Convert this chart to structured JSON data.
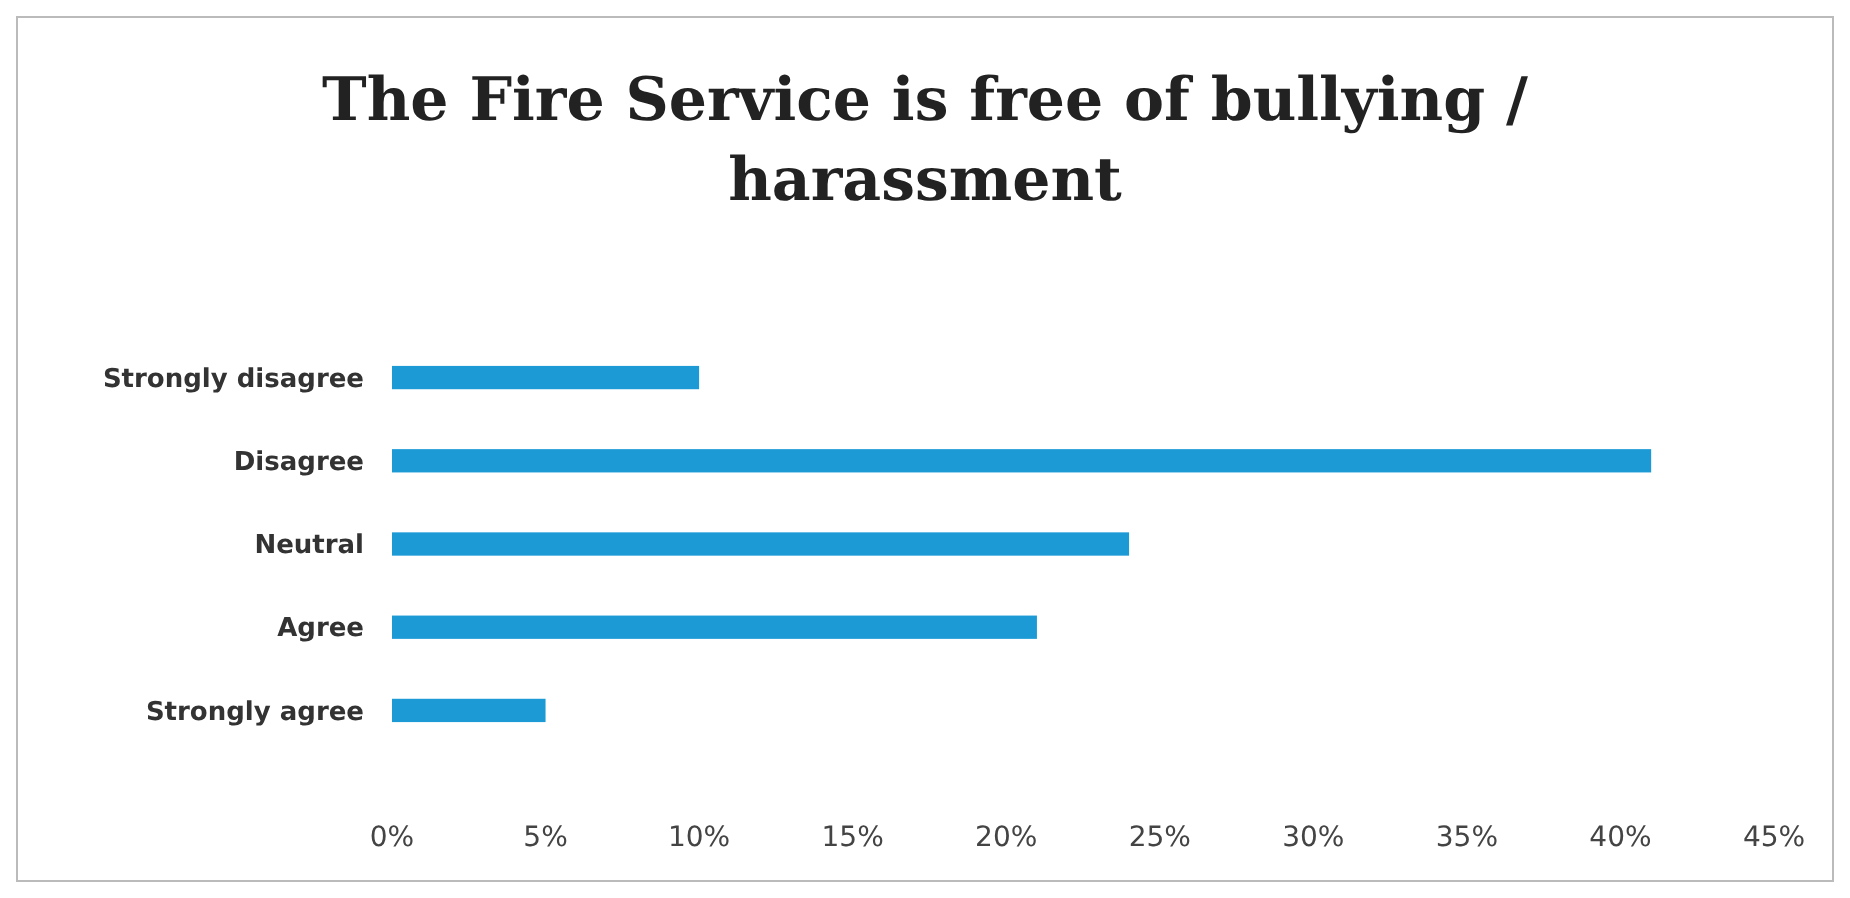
{
  "chart_data": {
    "type": "bar",
    "orientation": "horizontal",
    "title": "The Fire Service is free of bullying / harassment",
    "categories": [
      "Strongly disagree",
      "Disagree",
      "Neutral",
      "Agree",
      "Strongly agree"
    ],
    "values": [
      10,
      41,
      24,
      21,
      5
    ],
    "color": "#1b9ad6",
    "xlim": [
      0,
      45
    ],
    "xticks": [
      {
        "value": 0,
        "label": "0%"
      },
      {
        "value": 5,
        "label": "5%"
      },
      {
        "value": 10,
        "label": "10%"
      },
      {
        "value": 15,
        "label": "15%"
      },
      {
        "value": 20,
        "label": "20%"
      },
      {
        "value": 25,
        "label": "25%"
      },
      {
        "value": 30,
        "label": "30%"
      },
      {
        "value": 35,
        "label": "35%"
      },
      {
        "value": 40,
        "label": "40%"
      },
      {
        "value": 45,
        "label": "45%"
      }
    ]
  }
}
